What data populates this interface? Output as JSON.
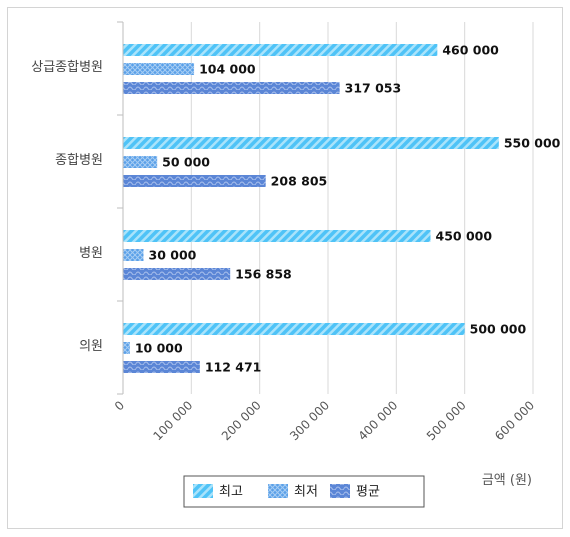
{
  "chart_data": {
    "type": "bar",
    "orientation": "horizontal",
    "categories": [
      "상급종합병원",
      "종합병원",
      "병원",
      "의원"
    ],
    "series": [
      {
        "name": "최고",
        "values": [
          460000,
          550000,
          450000,
          500000
        ],
        "labels": [
          "460 000",
          "550 000",
          "450 000",
          "500 000"
        ],
        "color": "#4fc3f7"
      },
      {
        "name": "최저",
        "values": [
          104000,
          50000,
          30000,
          10000
        ],
        "labels": [
          "104 000",
          "50 000",
          "30 000",
          "10 000"
        ],
        "color": "#5aa0e8"
      },
      {
        "name": "평균",
        "values": [
          317053,
          208805,
          156858,
          112471
        ],
        "labels": [
          "317 053",
          "208 805",
          "156 858",
          "112 471"
        ],
        "color": "#5b86d6"
      }
    ],
    "xlim": [
      0,
      600000
    ],
    "x_ticks": [
      0,
      100000,
      200000,
      300000,
      400000,
      500000,
      600000
    ],
    "x_tick_labels": [
      "0",
      "100 000",
      "200 000",
      "300 000",
      "400 000",
      "500 000",
      "600 000"
    ],
    "xlabel": "금액 (원)",
    "ylabel": "",
    "grid": true,
    "legend_position": "bottom"
  }
}
